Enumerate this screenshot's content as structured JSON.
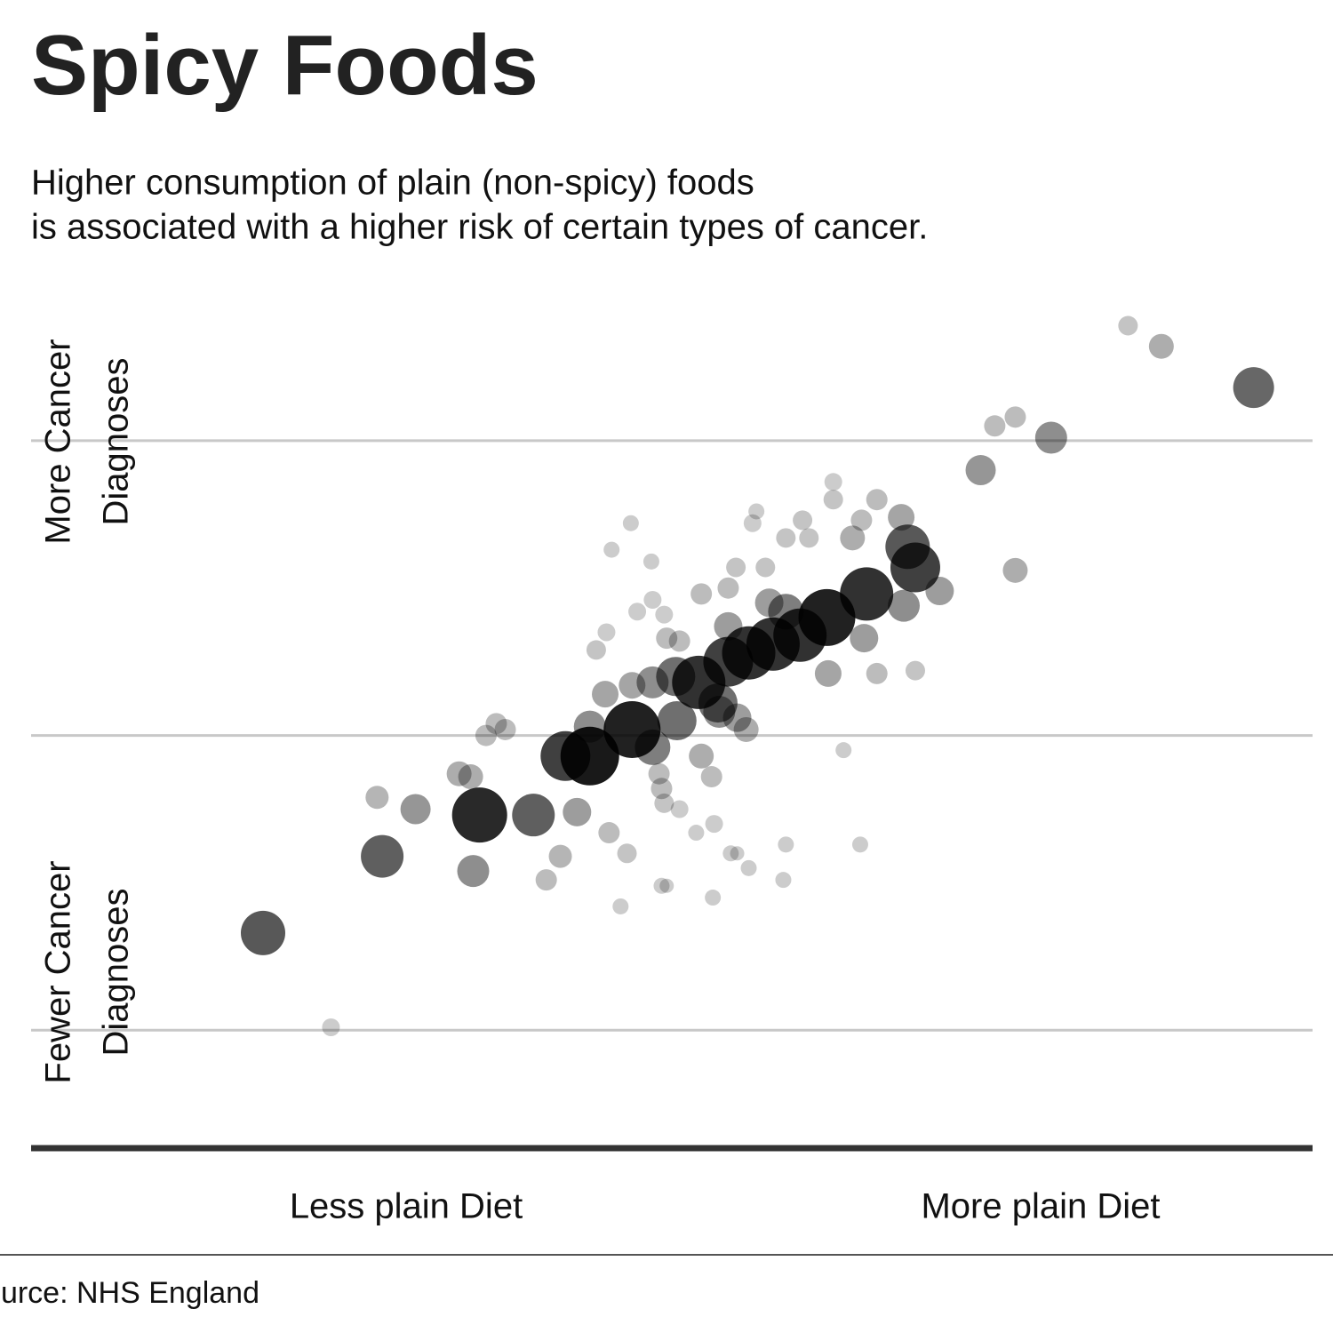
{
  "chart_data": {
    "type": "scatter",
    "title": "Spicy Foods",
    "subtitle": [
      "Higher consumption of plain (non-spicy) foods",
      "is associated with a higher risk of certain types of cancer."
    ],
    "y_labels": [
      [
        "More Cancer",
        "Diagnoses"
      ],
      [
        "Fewer Cancer",
        "Diagnoses"
      ]
    ],
    "x_labels": [
      "Less plain Diet",
      "More plain Diet"
    ],
    "source": "Source: NHS England",
    "color": "#000000",
    "xlim": [
      0,
      10
    ],
    "ylim": [
      0.6,
      3.5
    ],
    "gridlines": [
      1,
      2,
      3
    ],
    "x": [
      8.56,
      8.82,
      9.54,
      7.52,
      7.68,
      7.96,
      7.41,
      6.26,
      6.26,
      6.6,
      5.66,
      5.63,
      6.02,
      6.48,
      6.79,
      5.89,
      6.07,
      6.41,
      4.68,
      4.53,
      4.84,
      6.84,
      6.9,
      7.68,
      5.5,
      5.73,
      5.44,
      5.23,
      4.85,
      4.73,
      4.94,
      7.09,
      6.81,
      6.52,
      6.21,
      5.89,
      5.76,
      6.0,
      5.79,
      5.6,
      5.44,
      5.44,
      4.49,
      4.41,
      4.96,
      5.06,
      6.5,
      6.22,
      6.6,
      6.9,
      5.21,
      5.03,
      4.85,
      4.69,
      4.48,
      5.36,
      5.51,
      5.58,
      5.37,
      4.69,
      5.04,
      4.85,
      4.36,
      4.36,
      4.17,
      3.55,
      3.63,
      3.7,
      5.23,
      5.31,
      4.9,
      4.92,
      4.94,
      5.06,
      6.34,
      3.34,
      3.43,
      2.7,
      3.0,
      3.5,
      3.92,
      4.26,
      4.51,
      5.19,
      5.33,
      5.89,
      6.47,
      4.65,
      4.13,
      5.46,
      5.51,
      5.6,
      2.74,
      3.45,
      4.02,
      4.92,
      4.96,
      5.87,
      4.6,
      5.32,
      1.81,
      2.34
    ],
    "values": [
      3.39,
      3.32,
      3.18,
      3.05,
      3.08,
      3.01,
      2.9,
      2.86,
      2.8,
      2.8,
      2.76,
      2.72,
      2.73,
      2.73,
      2.74,
      2.67,
      2.67,
      2.67,
      2.72,
      2.63,
      2.59,
      2.64,
      2.57,
      2.56,
      2.57,
      2.57,
      2.5,
      2.48,
      2.46,
      2.42,
      2.41,
      2.49,
      2.44,
      2.48,
      2.4,
      2.42,
      2.45,
      2.34,
      2.31,
      2.28,
      2.25,
      2.37,
      2.35,
      2.29,
      2.33,
      2.32,
      2.33,
      2.21,
      2.21,
      2.22,
      2.18,
      2.2,
      2.18,
      2.17,
      2.14,
      2.11,
      2.06,
      2.02,
      2.08,
      2.02,
      2.05,
      1.96,
      2.03,
      1.93,
      1.93,
      2.0,
      2.04,
      2.02,
      1.93,
      1.86,
      1.87,
      1.82,
      1.77,
      1.75,
      1.95,
      1.87,
      1.86,
      1.79,
      1.75,
      1.73,
      1.73,
      1.74,
      1.67,
      1.67,
      1.7,
      1.63,
      1.63,
      1.6,
      1.59,
      1.6,
      1.6,
      1.55,
      1.59,
      1.54,
      1.51,
      1.49,
      1.49,
      1.51,
      1.42,
      1.45,
      1.33,
      1.01
    ],
    "sizes": [
      11,
      14,
      23,
      12,
      12,
      18,
      17,
      10,
      11,
      12,
      9,
      10,
      11,
      12,
      15,
      11,
      11,
      14,
      9,
      9,
      9,
      25,
      28,
      14,
      11,
      11,
      12,
      12,
      10,
      10,
      10,
      16,
      18,
      30,
      32,
      20,
      16,
      30,
      30,
      30,
      28,
      16,
      10,
      11,
      12,
      12,
      16,
      15,
      12,
      11,
      30,
      22,
      18,
      15,
      15,
      22,
      16,
      14,
      18,
      32,
      22,
      20,
      18,
      33,
      28,
      12,
      12,
      12,
      14,
      12,
      12,
      12,
      11,
      10,
      9,
      14,
      14,
      13,
      17,
      31,
      24,
      16,
      12,
      9,
      10,
      9,
      9,
      11,
      13,
      9,
      8,
      9,
      24,
      18,
      12,
      9,
      8,
      9,
      9,
      9,
      25,
      10
    ]
  }
}
